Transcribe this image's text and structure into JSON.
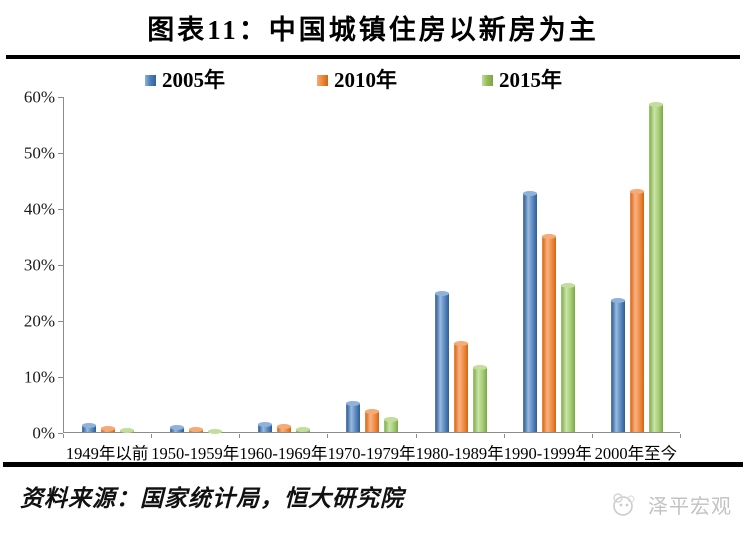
{
  "title": "图表11：中国城镇住房以新房为主",
  "legend": {
    "items": [
      {
        "label": "2005年",
        "color": "#4f81bd"
      },
      {
        "label": "2010年",
        "color": "#ef8a40"
      },
      {
        "label": "2015年",
        "color": "#9bbb59"
      }
    ]
  },
  "chart_data": {
    "type": "bar",
    "title": "图表11：中国城镇住房以新房为主",
    "categories": [
      "1949年以前",
      "1950-1959年",
      "1960-1969年",
      "1970-1979年",
      "1980-1989年",
      "1990-1999年",
      "2000年至今"
    ],
    "series": [
      {
        "name": "2005年",
        "color": "#4f81bd",
        "values": [
          1.3,
          0.9,
          1.4,
          5.2,
          24.9,
          42.7,
          23.5
        ]
      },
      {
        "name": "2010年",
        "color": "#ef8a40",
        "values": [
          0.8,
          0.5,
          1.0,
          3.7,
          15.9,
          35.0,
          43.1
        ]
      },
      {
        "name": "2015年",
        "color": "#9bbb59",
        "values": [
          0.3,
          0.2,
          0.6,
          2.3,
          11.7,
          26.2,
          58.6
        ]
      }
    ],
    "xlabel": "",
    "ylabel": "",
    "ylim": [
      0,
      60
    ],
    "ytick_step": 10,
    "ytick_labels": [
      "0%",
      "10%",
      "20%",
      "30%",
      "40%",
      "50%",
      "60%"
    ],
    "grid": false,
    "legend_position": "top",
    "unit": "%"
  },
  "footer": {
    "source": "资料来源：国家统计局，恒大研究院",
    "watermark": "泽平宏观"
  }
}
